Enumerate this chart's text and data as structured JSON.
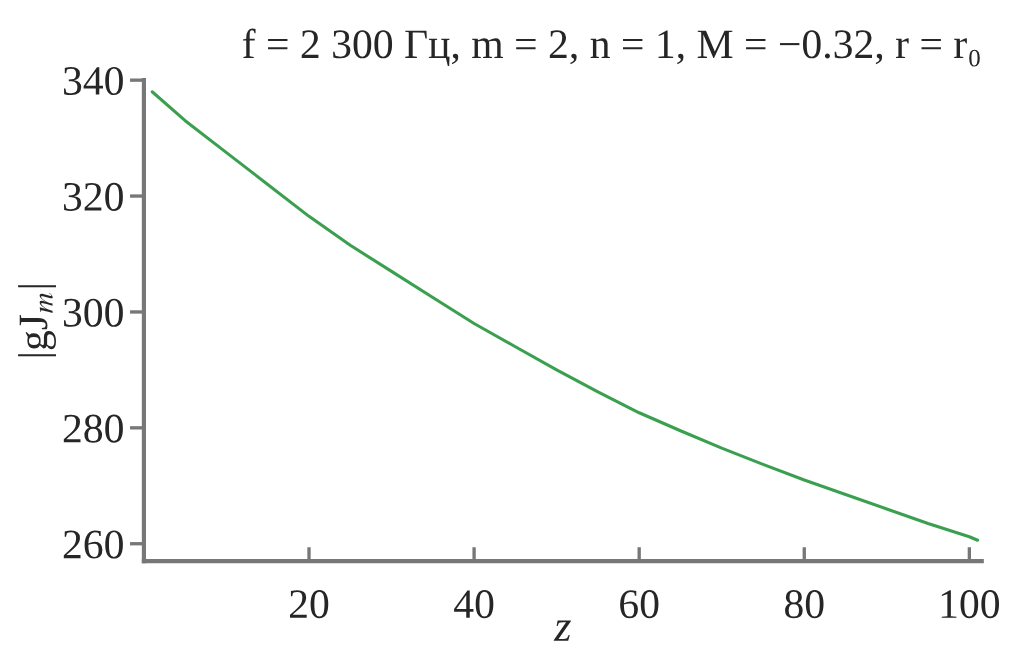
{
  "chart_data": {
    "type": "line",
    "title": "f = 2 300 Гц, m = 2, n = 1, M = −0.32, r = r₀",
    "xlabel": "z",
    "ylabel": "|gJ$_{m}$|",
    "x": [
      1,
      5,
      10,
      15,
      20,
      25,
      30,
      35,
      40,
      45,
      50,
      55,
      60,
      65,
      70,
      75,
      80,
      85,
      90,
      95,
      100,
      101
    ],
    "series": [
      {
        "color": "#3aa050",
        "values": [
          338,
          333,
          327.5,
          322,
          316.5,
          311.5,
          307,
          302.5,
          298,
          294,
          290,
          286.2,
          282.6,
          279.5,
          276.5,
          273.7,
          271,
          268.5,
          266,
          263.5,
          261.2,
          260.6
        ]
      }
    ],
    "xlim": [
      0,
      101.5
    ],
    "ylim": [
      257,
      340
    ],
    "xticks": [
      20,
      40,
      60,
      80,
      100
    ],
    "yticks": [
      260,
      280,
      300,
      320,
      340
    ],
    "grid": false,
    "legend": false,
    "marker": "none",
    "line_style": "solid"
  }
}
